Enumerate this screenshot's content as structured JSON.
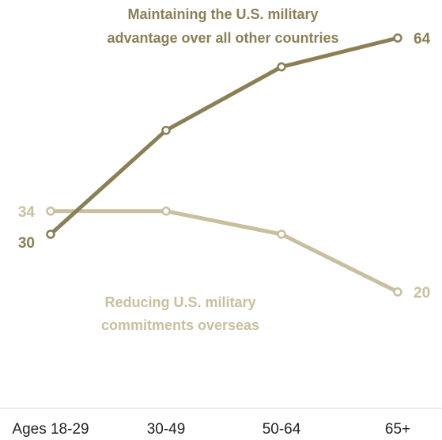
{
  "chart_data": {
    "type": "line",
    "categories": [
      "Ages 18-29",
      "30-49",
      "50-64",
      "65+"
    ],
    "series": [
      {
        "name": "Maintaining the U.S. military advantage over all other countries",
        "label_lines": [
          "Maintaining the U.S. military",
          "advantage over all other countries"
        ],
        "values": [
          30,
          48,
          59,
          64
        ],
        "end_labels": [
          "30",
          "",
          "",
          "64"
        ],
        "color": "#8a7f56"
      },
      {
        "name": "Reducing U.S. military commitments overseas",
        "label_lines": [
          "Reducing U.S. military",
          "commitments overseas"
        ],
        "values": [
          34,
          34,
          30,
          20
        ],
        "end_labels": [
          "34",
          "",
          "",
          "20"
        ],
        "color": "#c8bf9f"
      }
    ],
    "xlabel": "",
    "ylabel": "",
    "grid": false
  }
}
